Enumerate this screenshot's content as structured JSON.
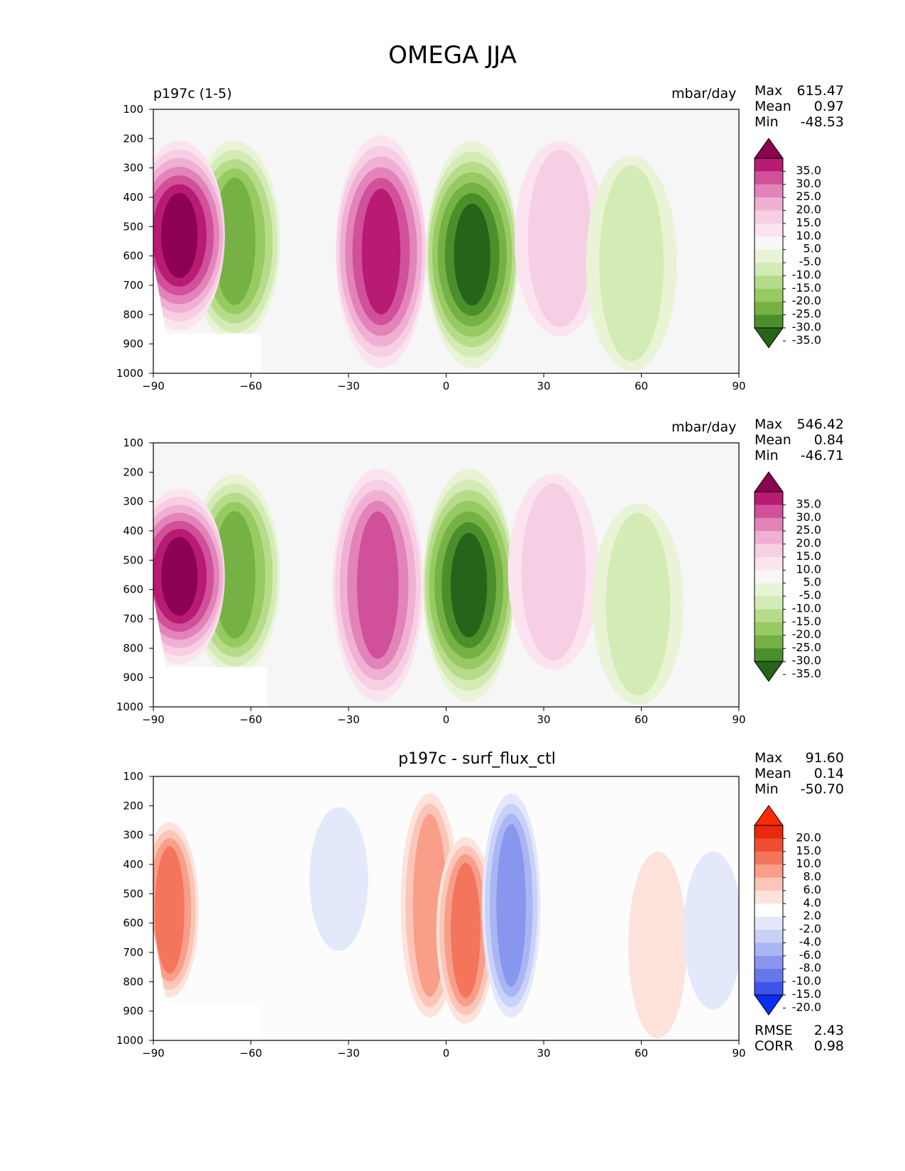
{
  "figure_title": "OMEGA JJA",
  "colors": {
    "plot_background": "#f6f6f6",
    "diff_background": "#fcfcfc",
    "missing_data": "#ffffff",
    "pink_levels": [
      "#fbe4ef",
      "#f6cfe4",
      "#efb0d4",
      "#e283b9",
      "#d1509a",
      "#b81b73",
      "#8c0152"
    ],
    "green_levels": [
      "#e9f4d6",
      "#d4ebb6",
      "#b6dc8a",
      "#98ca63",
      "#76b145",
      "#4b8f2a",
      "#276419"
    ],
    "red_levels": [
      "#fde3dc",
      "#fbc6b7",
      "#f89e89",
      "#f4755b",
      "#ee4d2f",
      "#e8280f",
      "#ff2a00"
    ],
    "blue_levels": [
      "#e4e8fb",
      "#c9d1f8",
      "#aab5f3",
      "#8996ee",
      "#6677ea",
      "#3f55ea",
      "#0a2cf5"
    ]
  },
  "chart_data": [
    {
      "type": "heatmap",
      "title_left": "p197c (1-5)",
      "units": "mbar/day",
      "stats": {
        "Max": "615.47",
        "Mean": "0.97",
        "Min": "-48.53"
      },
      "colorbar_ticks": [
        "35.0",
        "30.0",
        "25.0",
        "20.0",
        "15.0",
        "10.0",
        "5.0",
        "-5.0",
        "-10.0",
        "-15.0",
        "-20.0",
        "-25.0",
        "-30.0",
        "-35.0"
      ],
      "x_ticks": [
        "−90",
        "−60",
        "−30",
        "0",
        "30",
        "60",
        "90"
      ],
      "y_ticks": [
        "100",
        "200",
        "300",
        "400",
        "500",
        "600",
        "700",
        "800",
        "900",
        "1000"
      ],
      "xlim": [
        -90,
        90
      ],
      "ylim": [
        1000,
        100
      ],
      "grid": false,
      "features": [
        {
          "kind": "descent",
          "lat": -20,
          "p_top": 180,
          "p_bottom": 990,
          "peak": 30
        },
        {
          "kind": "ascent",
          "lat": 8,
          "p_top": 200,
          "p_bottom": 990,
          "peak": -35
        },
        {
          "kind": "ascent",
          "lat": -65,
          "p_top": 200,
          "p_bottom": 900,
          "peak": -25
        },
        {
          "kind": "descent",
          "lat": -82,
          "p_top": 200,
          "p_bottom": 860,
          "peak": 35
        },
        {
          "kind": "descent",
          "lat": 35,
          "p_top": 200,
          "p_bottom": 880,
          "peak": 10
        },
        {
          "kind": "ascent",
          "lat": 57,
          "p_top": 250,
          "p_bottom": 1000,
          "peak": -10
        }
      ]
    },
    {
      "type": "heatmap",
      "units": "mbar/day",
      "stats": {
        "Max": "546.42",
        "Mean": "0.84",
        "Min": "-46.71"
      },
      "colorbar_ticks": [
        "35.0",
        "30.0",
        "25.0",
        "20.0",
        "15.0",
        "10.0",
        "5.0",
        "-5.0",
        "-10.0",
        "-15.0",
        "-20.0",
        "-25.0",
        "-30.0",
        "-35.0"
      ],
      "x_ticks": [
        "−90",
        "−60",
        "−30",
        "0",
        "30",
        "60",
        "90"
      ],
      "y_ticks": [
        "100",
        "200",
        "300",
        "400",
        "500",
        "600",
        "700",
        "800",
        "900",
        "1000"
      ],
      "xlim": [
        -90,
        90
      ],
      "ylim": [
        1000,
        100
      ],
      "grid": false,
      "features": [
        {
          "kind": "descent",
          "lat": -21,
          "p_top": 180,
          "p_bottom": 990,
          "peak": 25
        },
        {
          "kind": "ascent",
          "lat": 7,
          "p_top": 180,
          "p_bottom": 990,
          "peak": -35
        },
        {
          "kind": "ascent",
          "lat": -65,
          "p_top": 200,
          "p_bottom": 900,
          "peak": -25
        },
        {
          "kind": "descent",
          "lat": -82,
          "p_top": 250,
          "p_bottom": 860,
          "peak": 35
        },
        {
          "kind": "descent",
          "lat": 33,
          "p_top": 200,
          "p_bottom": 880,
          "peak": 10
        },
        {
          "kind": "ascent",
          "lat": 59,
          "p_top": 300,
          "p_bottom": 1000,
          "peak": -10
        }
      ]
    },
    {
      "type": "heatmap",
      "title": "p197c - surf_flux_ctl",
      "stats": {
        "Max": "91.60",
        "Mean": "0.14",
        "Min": "-50.70"
      },
      "extra_stats": {
        "RMSE": "2.43",
        "CORR": "0.98"
      },
      "colorbar_ticks": [
        "20.0",
        "15.0",
        "10.0",
        "8.0",
        "6.0",
        "4.0",
        "2.0",
        "-2.0",
        "-4.0",
        "-6.0",
        "-8.0",
        "-10.0",
        "-15.0",
        "-20.0"
      ],
      "x_ticks": [
        "−90",
        "−60",
        "−30",
        "0",
        "30",
        "60",
        "90"
      ],
      "y_ticks": [
        "100",
        "200",
        "300",
        "400",
        "500",
        "600",
        "700",
        "800",
        "900",
        "1000"
      ],
      "xlim": [
        -90,
        90
      ],
      "ylim": [
        1000,
        100
      ],
      "grid": false,
      "features": [
        {
          "kind": "positive",
          "lat": -85,
          "p_top": 250,
          "p_bottom": 860,
          "peak": 8
        },
        {
          "kind": "positive",
          "lat": -5,
          "p_top": 150,
          "p_bottom": 930,
          "peak": 6
        },
        {
          "kind": "positive",
          "lat": 6,
          "p_top": 300,
          "p_bottom": 950,
          "peak": 8
        },
        {
          "kind": "negative",
          "lat": 20,
          "p_top": 150,
          "p_bottom": 930,
          "peak": -8
        },
        {
          "kind": "negative",
          "lat": -33,
          "p_top": 200,
          "p_bottom": 700,
          "peak": -2
        },
        {
          "kind": "positive",
          "lat": 65,
          "p_top": 350,
          "p_bottom": 1000,
          "peak": 2
        },
        {
          "kind": "negative",
          "lat": 82,
          "p_top": 350,
          "p_bottom": 900,
          "peak": -2
        }
      ]
    }
  ]
}
